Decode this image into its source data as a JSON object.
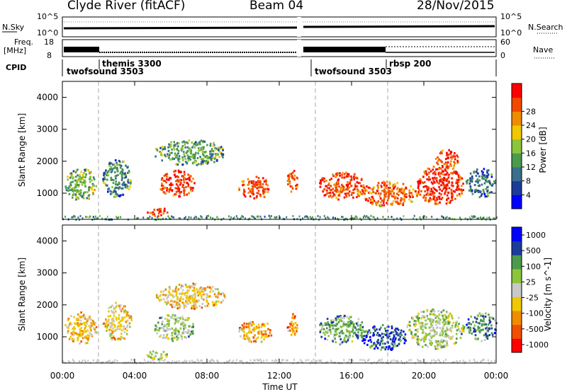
{
  "header": {
    "station": "Clyde River (fitACF)",
    "beam": "Beam 04",
    "date": "28/Nov/2015"
  },
  "summary_labels": {
    "nsky": "N.Sky",
    "nsky_ticks": [
      "10^5",
      "10^0"
    ],
    "freq": "Freq.",
    "freq_unit": "[MHz]",
    "freq_ticks": [
      "18",
      "8"
    ],
    "right_ticks_top": [
      "10^5",
      "10^0"
    ],
    "right_ticks_mid": [
      "60",
      "0"
    ],
    "nsearch": "N.Search",
    "nave": "Nave",
    "cpid": "CPID"
  },
  "cpid_segments": [
    {
      "label": "twofsound 3503",
      "start_h": 0.0
    },
    {
      "label": "themis 3300",
      "start_h": 2.0
    },
    {
      "label": "twofsound 3503",
      "start_h": 14.0
    },
    {
      "label": "rbsp 200",
      "start_h": 18.0
    }
  ],
  "colors": {
    "power_scale": [
      "#0000ff",
      "#1c3c9c",
      "#3a6e8c",
      "#4c9a4c",
      "#8cc43c",
      "#f0c800",
      "#f08c00",
      "#f04a00",
      "#ff0000"
    ],
    "velocity_scale": [
      "#ff0000",
      "#f05000",
      "#f08c00",
      "#f0c800",
      "#c8c8c8",
      "#8cc43c",
      "#4c9a4c",
      "#1c3c9c",
      "#0000ff"
    ]
  },
  "chart_data": [
    {
      "type": "heatmap",
      "name": "power",
      "ylabel": "Slant Range [km]",
      "xlabel": "Time UT",
      "x_ticks": [
        "00:00",
        "04:00",
        "08:00",
        "12:00",
        "16:00",
        "20:00",
        "00:00"
      ],
      "xlim_h": [
        0,
        24
      ],
      "ylim": [
        180,
        4500
      ],
      "y_ticks": [
        1000,
        2000,
        3000,
        4000
      ],
      "colorbar": {
        "label": "Power [dB]",
        "ticks": [
          "4",
          "8",
          "12",
          "16",
          "20",
          "24",
          "28"
        ],
        "range": [
          0,
          30
        ]
      },
      "vertical_dividers_h": [
        2.0,
        14.0,
        18.0
      ],
      "regions": [
        {
          "t0": 0.1,
          "t1": 1.9,
          "r0": 800,
          "r1": 1800,
          "v": 14
        },
        {
          "t0": 2.2,
          "t1": 3.8,
          "r0": 900,
          "r1": 2100,
          "v": 10
        },
        {
          "t0": 5.3,
          "t1": 7.3,
          "r0": 900,
          "r1": 1750,
          "v": 26
        },
        {
          "t0": 4.6,
          "t1": 5.8,
          "r0": 300,
          "r1": 600,
          "v": 26
        },
        {
          "t0": 5.0,
          "t1": 9.0,
          "r0": 1900,
          "r1": 2700,
          "v": 12
        },
        {
          "t0": 9.7,
          "t1": 11.6,
          "r0": 850,
          "r1": 1550,
          "v": 25
        },
        {
          "t0": 12.4,
          "t1": 13.0,
          "r0": 1050,
          "r1": 1750,
          "v": 26
        },
        {
          "t0": 14.1,
          "t1": 16.8,
          "r0": 800,
          "r1": 1700,
          "v": 25
        },
        {
          "t0": 16.5,
          "t1": 19.6,
          "r0": 600,
          "r1": 1400,
          "v": 24
        },
        {
          "t0": 19.5,
          "t1": 22.2,
          "r0": 650,
          "r1": 1900,
          "v": 27
        },
        {
          "t0": 20.6,
          "t1": 21.9,
          "r0": 1800,
          "r1": 2400,
          "v": 26
        },
        {
          "t0": 22.3,
          "t1": 24.0,
          "r0": 900,
          "r1": 1800,
          "v": 9
        }
      ]
    },
    {
      "type": "heatmap",
      "name": "velocity",
      "ylabel": "Slant Range [km]",
      "xlabel": "Time UT",
      "x_ticks": [
        "00:00",
        "04:00",
        "08:00",
        "12:00",
        "16:00",
        "20:00",
        "00:00"
      ],
      "xlim_h": [
        0,
        24
      ],
      "ylim": [
        180,
        4500
      ],
      "y_ticks": [
        1000,
        2000,
        3000,
        4000
      ],
      "colorbar": {
        "label": "Velocity [m s^-1]",
        "ticks": [
          "1000",
          "500",
          "100",
          "25",
          "-25",
          "-100",
          "-500",
          "-1000"
        ],
        "range": [
          -1200,
          1200
        ]
      },
      "vertical_dividers_h": [
        2.0,
        14.0,
        18.0
      ],
      "regions": [
        {
          "t0": 0.1,
          "t1": 1.9,
          "r0": 800,
          "r1": 1800,
          "v": -300
        },
        {
          "t0": 2.2,
          "t1": 3.8,
          "r0": 900,
          "r1": 2100,
          "v": -200
        },
        {
          "t0": 5.0,
          "t1": 7.3,
          "r0": 900,
          "r1": 1750,
          "v": 200
        },
        {
          "t0": 4.6,
          "t1": 5.8,
          "r0": 300,
          "r1": 600,
          "v": 60
        },
        {
          "t0": 5.0,
          "t1": 9.0,
          "r0": 1900,
          "r1": 2700,
          "v": -250
        },
        {
          "t0": 9.7,
          "t1": 11.6,
          "r0": 850,
          "r1": 1550,
          "v": -400
        },
        {
          "t0": 12.4,
          "t1": 13.0,
          "r0": 1050,
          "r1": 1750,
          "v": -500
        },
        {
          "t0": 14.1,
          "t1": 16.8,
          "r0": 800,
          "r1": 1700,
          "v": 400
        },
        {
          "t0": 16.5,
          "t1": 19.0,
          "r0": 600,
          "r1": 1400,
          "v": 800
        },
        {
          "t0": 19.0,
          "t1": 22.2,
          "r0": 650,
          "r1": 1900,
          "v": 150
        },
        {
          "t0": 22.3,
          "t1": 24.0,
          "r0": 900,
          "r1": 1800,
          "v": 600
        }
      ]
    }
  ]
}
